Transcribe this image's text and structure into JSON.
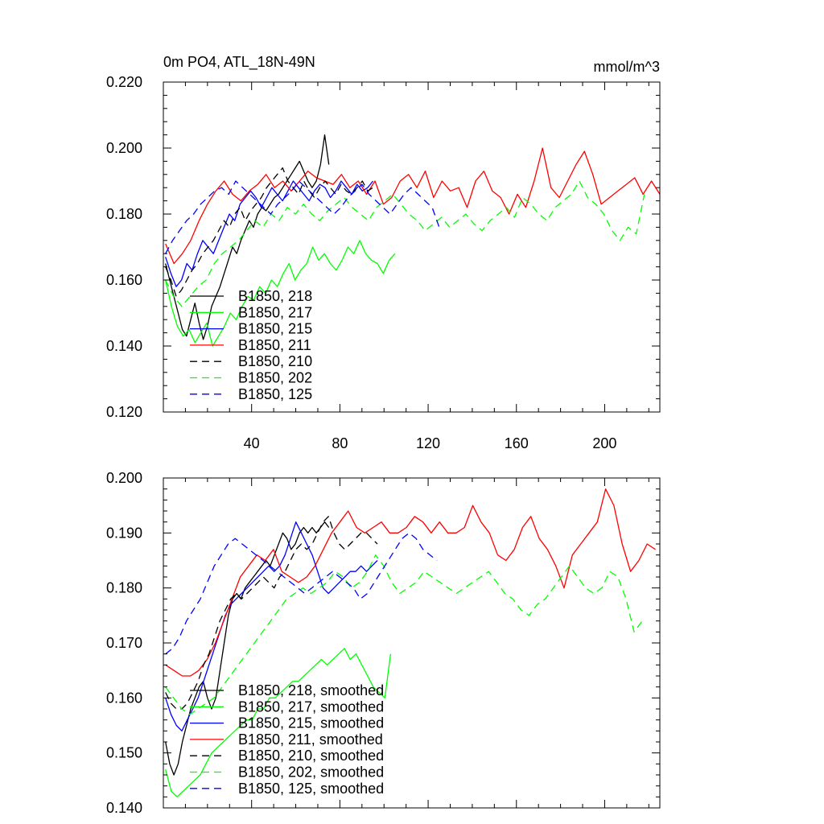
{
  "chart_data": [
    {
      "type": "line",
      "title": "0m PO4, ATL_18N-49N",
      "units": "mmol/m^3",
      "xlim": [
        0,
        225
      ],
      "ylim": [
        0.12,
        0.22
      ],
      "xticks": [
        40,
        80,
        120,
        160,
        200
      ],
      "xtick_labels": [
        "40",
        "80",
        "120",
        "160",
        "200"
      ],
      "yticks": [
        0.12,
        0.14,
        0.16,
        0.18,
        0.2,
        0.22
      ],
      "ytick_labels": [
        "0.120",
        "0.140",
        "0.160",
        "0.180",
        "0.200",
        "0.220"
      ],
      "legend_position": "lower-left",
      "series": [
        {
          "name": "B1850, 218",
          "color": "#000000",
          "dash": "solid",
          "x_end": 75,
          "values": [
            0.165,
            0.16,
            0.155,
            0.15,
            0.145,
            0.143,
            0.148,
            0.153,
            0.147,
            0.142,
            0.146,
            0.152,
            0.155,
            0.158,
            0.162,
            0.166,
            0.17,
            0.168,
            0.172,
            0.175,
            0.178,
            0.176,
            0.18,
            0.182,
            0.181,
            0.183,
            0.185,
            0.186,
            0.188,
            0.19,
            0.192,
            0.194,
            0.196,
            0.193,
            0.19,
            0.188,
            0.19,
            0.195,
            0.204,
            0.195
          ]
        },
        {
          "name": "B1850, 217",
          "color": "#00ff00",
          "dash": "solid",
          "x_end": 105,
          "values": [
            0.16,
            0.152,
            0.146,
            0.143,
            0.145,
            0.141,
            0.144,
            0.147,
            0.14,
            0.143,
            0.146,
            0.15,
            0.148,
            0.152,
            0.155,
            0.154,
            0.158,
            0.156,
            0.16,
            0.158,
            0.162,
            0.165,
            0.16,
            0.163,
            0.165,
            0.17,
            0.166,
            0.168,
            0.165,
            0.163,
            0.166,
            0.17,
            0.168,
            0.172,
            0.168,
            0.166,
            0.165,
            0.162,
            0.166,
            0.168
          ]
        },
        {
          "name": "B1850, 215",
          "color": "#0000ff",
          "dash": "solid",
          "x_end": 95,
          "values": [
            0.167,
            0.162,
            0.158,
            0.16,
            0.165,
            0.163,
            0.168,
            0.172,
            0.17,
            0.168,
            0.172,
            0.176,
            0.18,
            0.178,
            0.183,
            0.185,
            0.187,
            0.185,
            0.182,
            0.185,
            0.188,
            0.186,
            0.184,
            0.187,
            0.19,
            0.188,
            0.186,
            0.184,
            0.187,
            0.189,
            0.188,
            0.185,
            0.187,
            0.19,
            0.188,
            0.186,
            0.189,
            0.187,
            0.188,
            0.19
          ]
        },
        {
          "name": "B1850, 211",
          "color": "#ff0000",
          "dash": "solid",
          "x_end": 225,
          "values": [
            0.171,
            0.165,
            0.168,
            0.172,
            0.178,
            0.183,
            0.187,
            0.19,
            0.186,
            0.184,
            0.187,
            0.189,
            0.192,
            0.188,
            0.19,
            0.187,
            0.19,
            0.193,
            0.191,
            0.19,
            0.189,
            0.192,
            0.188,
            0.19,
            0.186,
            0.19,
            0.183,
            0.185,
            0.19,
            0.192,
            0.188,
            0.193,
            0.185,
            0.19,
            0.187,
            0.188,
            0.182,
            0.19,
            0.193,
            0.187,
            0.185,
            0.18,
            0.186,
            0.182,
            0.19,
            0.2,
            0.188,
            0.185,
            0.19,
            0.195,
            0.199,
            0.192,
            0.183,
            0.185,
            0.187,
            0.189,
            0.191,
            0.186,
            0.19,
            0.186
          ]
        },
        {
          "name": "B1850, 210",
          "color": "#000000",
          "dash": "dashed",
          "x_end": 95,
          "values": [
            0.164,
            0.16,
            0.155,
            0.157,
            0.16,
            0.163,
            0.165,
            0.168,
            0.17,
            0.172,
            0.175,
            0.178,
            0.176,
            0.18,
            0.182,
            0.178,
            0.181,
            0.183,
            0.185,
            0.188,
            0.19,
            0.192,
            0.194,
            0.19,
            0.188,
            0.186,
            0.19,
            0.187,
            0.185,
            0.188,
            0.19,
            0.188,
            0.186,
            0.189,
            0.187,
            0.186,
            0.188,
            0.19,
            0.187,
            0.188
          ]
        },
        {
          "name": "B1850, 202",
          "color": "#00ff00",
          "dash": "dashed",
          "x_end": 218,
          "values": [
            0.16,
            0.155,
            0.152,
            0.155,
            0.158,
            0.16,
            0.165,
            0.168,
            0.17,
            0.172,
            0.175,
            0.178,
            0.176,
            0.18,
            0.178,
            0.182,
            0.18,
            0.183,
            0.18,
            0.178,
            0.181,
            0.183,
            0.185,
            0.182,
            0.18,
            0.178,
            0.182,
            0.184,
            0.186,
            0.183,
            0.18,
            0.178,
            0.175,
            0.177,
            0.179,
            0.176,
            0.178,
            0.18,
            0.177,
            0.175,
            0.178,
            0.18,
            0.182,
            0.179,
            0.185,
            0.183,
            0.18,
            0.178,
            0.182,
            0.184,
            0.186,
            0.19,
            0.185,
            0.183,
            0.18,
            0.175,
            0.172,
            0.176,
            0.174,
            0.186
          ]
        },
        {
          "name": "B1850, 125",
          "color": "#0000ff",
          "dash": "dashed",
          "x_end": 125,
          "values": [
            0.168,
            0.172,
            0.175,
            0.178,
            0.18,
            0.183,
            0.185,
            0.187,
            0.188,
            0.186,
            0.19,
            0.188,
            0.186,
            0.184,
            0.182,
            0.18,
            0.183,
            0.185,
            0.187,
            0.19,
            0.188,
            0.186,
            0.184,
            0.182,
            0.18,
            0.182,
            0.185,
            0.187,
            0.189,
            0.186,
            0.184,
            0.182,
            0.18,
            0.183,
            0.186,
            0.188,
            0.186,
            0.184,
            0.182,
            0.176
          ]
        }
      ]
    },
    {
      "type": "line",
      "title": "",
      "xlim": [
        0,
        225
      ],
      "ylim": [
        0.14,
        0.2
      ],
      "xticks": [
        40,
        80,
        120,
        160,
        200
      ],
      "xtick_labels": [],
      "yticks": [
        0.14,
        0.15,
        0.16,
        0.17,
        0.18,
        0.19,
        0.2
      ],
      "ytick_labels": [
        "0.140",
        "0.150",
        "0.160",
        "0.170",
        "0.180",
        "0.190",
        "0.200"
      ],
      "legend_position": "lower-left",
      "series": [
        {
          "name": "B1850, 218, smoothed",
          "color": "#000000",
          "dash": "solid",
          "x_end": 75,
          "values": [
            0.152,
            0.148,
            0.146,
            0.148,
            0.152,
            0.155,
            0.158,
            0.16,
            0.162,
            0.163,
            0.16,
            0.158,
            0.16,
            0.165,
            0.17,
            0.175,
            0.178,
            0.179,
            0.178,
            0.18,
            0.181,
            0.182,
            0.183,
            0.184,
            0.185,
            0.184,
            0.186,
            0.188,
            0.19,
            0.189,
            0.187,
            0.188,
            0.19,
            0.191,
            0.19,
            0.191,
            0.19,
            0.191,
            0.192,
            0.191
          ]
        },
        {
          "name": "B1850, 217, smoothed",
          "color": "#00ff00",
          "dash": "solid",
          "x_end": 103,
          "values": [
            0.147,
            0.143,
            0.142,
            0.143,
            0.144,
            0.145,
            0.146,
            0.148,
            0.15,
            0.151,
            0.152,
            0.153,
            0.154,
            0.155,
            0.156,
            0.156,
            0.158,
            0.158,
            0.16,
            0.16,
            0.161,
            0.162,
            0.163,
            0.163,
            0.164,
            0.165,
            0.166,
            0.167,
            0.166,
            0.167,
            0.168,
            0.169,
            0.167,
            0.168,
            0.166,
            0.164,
            0.162,
            0.161,
            0.16,
            0.168
          ]
        },
        {
          "name": "B1850, 215, smoothed",
          "color": "#0000ff",
          "dash": "solid",
          "x_end": 97,
          "values": [
            0.16,
            0.157,
            0.155,
            0.154,
            0.156,
            0.158,
            0.16,
            0.163,
            0.166,
            0.169,
            0.172,
            0.175,
            0.177,
            0.178,
            0.179,
            0.18,
            0.181,
            0.182,
            0.183,
            0.184,
            0.183,
            0.184,
            0.186,
            0.189,
            0.192,
            0.19,
            0.188,
            0.186,
            0.183,
            0.18,
            0.179,
            0.18,
            0.181,
            0.182,
            0.183,
            0.183,
            0.184,
            0.183,
            0.184,
            0.185
          ]
        },
        {
          "name": "B1850, 211, smoothed",
          "color": "#ff0000",
          "dash": "solid",
          "x_end": 223,
          "values": [
            0.166,
            0.165,
            0.164,
            0.164,
            0.165,
            0.167,
            0.17,
            0.174,
            0.178,
            0.182,
            0.184,
            0.186,
            0.185,
            0.187,
            0.183,
            0.182,
            0.181,
            0.182,
            0.184,
            0.187,
            0.19,
            0.192,
            0.194,
            0.191,
            0.19,
            0.191,
            0.192,
            0.19,
            0.19,
            0.191,
            0.193,
            0.192,
            0.19,
            0.192,
            0.19,
            0.19,
            0.191,
            0.195,
            0.192,
            0.19,
            0.186,
            0.185,
            0.187,
            0.191,
            0.193,
            0.189,
            0.187,
            0.184,
            0.18,
            0.186,
            0.188,
            0.19,
            0.192,
            0.198,
            0.195,
            0.188,
            0.183,
            0.185,
            0.188,
            0.187
          ]
        },
        {
          "name": "B1850, 210, smoothed",
          "color": "#000000",
          "dash": "dashed",
          "x_end": 97,
          "values": [
            0.161,
            0.159,
            0.158,
            0.158,
            0.159,
            0.161,
            0.163,
            0.166,
            0.168,
            0.171,
            0.174,
            0.176,
            0.178,
            0.179,
            0.178,
            0.179,
            0.18,
            0.181,
            0.182,
            0.181,
            0.18,
            0.182,
            0.183,
            0.185,
            0.187,
            0.188,
            0.187,
            0.188,
            0.19,
            0.192,
            0.193,
            0.19,
            0.188,
            0.187,
            0.188,
            0.189,
            0.19,
            0.19,
            0.189,
            0.188
          ]
        },
        {
          "name": "B1850, 202, smoothed",
          "color": "#00ff00",
          "dash": "dashed",
          "x_end": 217,
          "values": [
            0.162,
            0.16,
            0.158,
            0.157,
            0.158,
            0.159,
            0.16,
            0.162,
            0.164,
            0.166,
            0.168,
            0.17,
            0.172,
            0.174,
            0.176,
            0.178,
            0.179,
            0.18,
            0.179,
            0.18,
            0.181,
            0.183,
            0.182,
            0.18,
            0.181,
            0.183,
            0.186,
            0.184,
            0.181,
            0.179,
            0.18,
            0.181,
            0.183,
            0.182,
            0.181,
            0.18,
            0.179,
            0.18,
            0.181,
            0.182,
            0.183,
            0.181,
            0.179,
            0.178,
            0.176,
            0.175,
            0.177,
            0.178,
            0.18,
            0.182,
            0.184,
            0.182,
            0.18,
            0.179,
            0.18,
            0.183,
            0.182,
            0.178,
            0.172,
            0.174
          ]
        },
        {
          "name": "B1850, 125, smoothed",
          "color": "#0000ff",
          "dash": "dashed",
          "x_end": 124,
          "values": [
            0.168,
            0.169,
            0.171,
            0.174,
            0.176,
            0.178,
            0.181,
            0.184,
            0.186,
            0.188,
            0.189,
            0.188,
            0.187,
            0.186,
            0.185,
            0.184,
            0.183,
            0.182,
            0.181,
            0.18,
            0.179,
            0.18,
            0.181,
            0.182,
            0.183,
            0.182,
            0.181,
            0.18,
            0.178,
            0.179,
            0.181,
            0.183,
            0.185,
            0.187,
            0.189,
            0.19,
            0.189,
            0.187,
            0.186,
            0.185
          ]
        }
      ]
    }
  ]
}
